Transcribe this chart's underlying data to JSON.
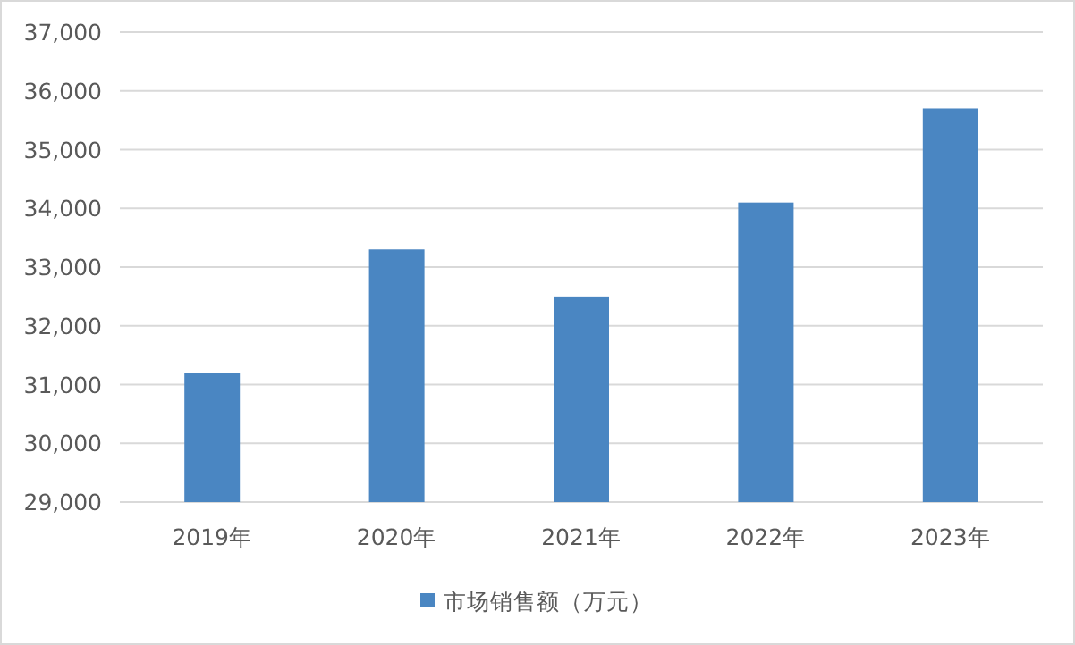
{
  "chart_data": {
    "type": "bar",
    "categories": [
      "2019年",
      "2020年",
      "2021年",
      "2022年",
      "2023年"
    ],
    "series": [
      {
        "name": "市场销售额（万元）",
        "color": "#4a86c2",
        "values": [
          31200,
          33300,
          32500,
          34100,
          35700
        ]
      }
    ],
    "ylim": [
      29000,
      37000
    ],
    "yticks": [
      {
        "value": 29000,
        "label": "29,000"
      },
      {
        "value": 30000,
        "label": "30,000"
      },
      {
        "value": 31000,
        "label": "31,000"
      },
      {
        "value": 32000,
        "label": "32,000"
      },
      {
        "value": 33000,
        "label": "33,000"
      },
      {
        "value": 34000,
        "label": "34,000"
      },
      {
        "value": 35000,
        "label": "35,000"
      },
      {
        "value": 36000,
        "label": "36,000"
      },
      {
        "value": 37000,
        "label": "37,000"
      }
    ],
    "grid": "y",
    "legend": "bottom"
  }
}
